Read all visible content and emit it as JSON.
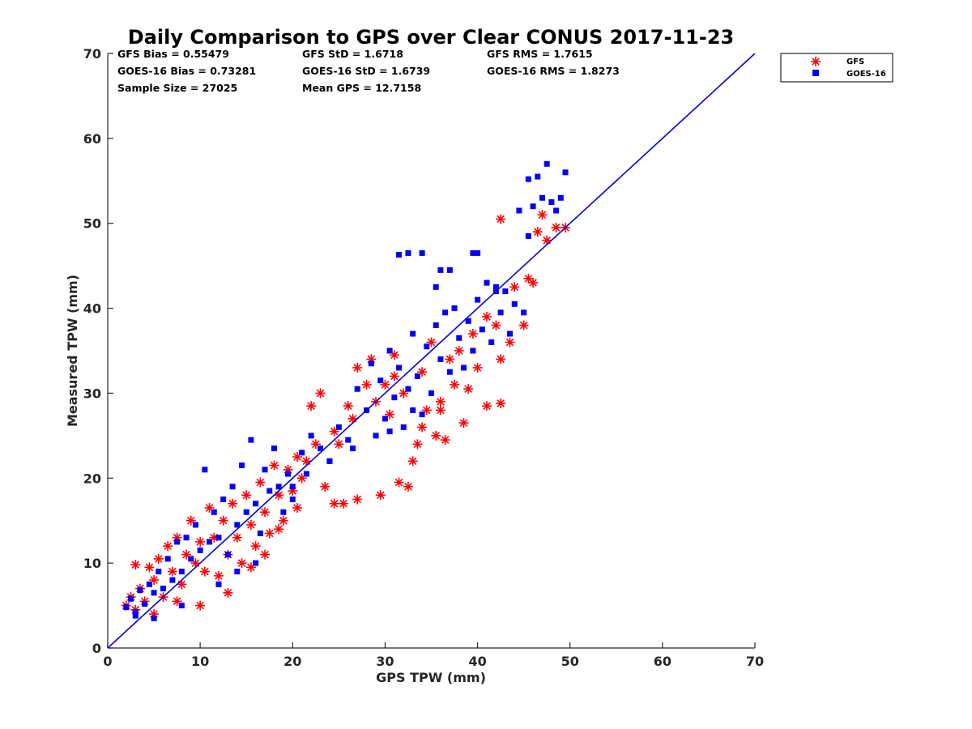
{
  "chart_data": {
    "type": "scatter",
    "title": "Daily Comparison to GPS over Clear CONUS 2017-11-23",
    "xlabel": "GPS TPW (mm)",
    "ylabel": "Measured TPW (mm)",
    "xlim": [
      0,
      70
    ],
    "ylim": [
      0,
      70
    ],
    "xticks": [
      "0",
      "10",
      "20",
      "30",
      "40",
      "50",
      "60",
      "70"
    ],
    "yticks": [
      "0",
      "10",
      "20",
      "30",
      "40",
      "50",
      "60",
      "70"
    ],
    "legend_position": "outside-top-right",
    "reference_line": {
      "name": "1:1 line",
      "color": "#0000dd",
      "x": [
        0,
        70
      ],
      "y": [
        0,
        70
      ]
    },
    "stats": {
      "gfs_bias": "GFS Bias = 0.55479",
      "gfs_std": "GFS StD = 1.6718",
      "gfs_rms": "GFS RMS = 1.7615",
      "goes_bias": "GOES-16 Bias = 0.73281",
      "goes_std": "GOES-16 StD = 1.6739",
      "goes_rms": "GOES-16 RMS = 1.8273",
      "sample_size": "Sample Size = 27025",
      "mean_gps": "Mean GPS = 12.7158"
    },
    "series": [
      {
        "name": "GFS",
        "marker": "asterisk",
        "color": "#ff0000",
        "points": [
          [
            2.0,
            5.0
          ],
          [
            2.5,
            6.0
          ],
          [
            3.0,
            4.5
          ],
          [
            3.5,
            7.0
          ],
          [
            4.0,
            5.5
          ],
          [
            3.0,
            9.8
          ],
          [
            4.5,
            9.5
          ],
          [
            5.0,
            8.0
          ],
          [
            5.5,
            10.5
          ],
          [
            6.0,
            6.0
          ],
          [
            6.5,
            12.0
          ],
          [
            7.0,
            9.0
          ],
          [
            7.5,
            13.0
          ],
          [
            8.0,
            7.5
          ],
          [
            8.5,
            11.0
          ],
          [
            9.0,
            15.0
          ],
          [
            9.5,
            10.0
          ],
          [
            10.0,
            12.5
          ],
          [
            10.5,
            9.0
          ],
          [
            11.0,
            16.5
          ],
          [
            11.5,
            13.0
          ],
          [
            12.0,
            8.5
          ],
          [
            12.5,
            15.0
          ],
          [
            13.0,
            11.0
          ],
          [
            13.5,
            17.0
          ],
          [
            14.0,
            13.0
          ],
          [
            14.5,
            10.0
          ],
          [
            15.0,
            18.0
          ],
          [
            15.5,
            14.5
          ],
          [
            16.0,
            12.0
          ],
          [
            16.5,
            19.5
          ],
          [
            17.0,
            16.0
          ],
          [
            17.5,
            13.5
          ],
          [
            18.0,
            21.5
          ],
          [
            18.5,
            18.0
          ],
          [
            19.0,
            15.0
          ],
          [
            19.5,
            21.0
          ],
          [
            20.0,
            18.5
          ],
          [
            20.5,
            16.5
          ],
          [
            21.0,
            20.0
          ],
          [
            22.0,
            28.5
          ],
          [
            23.0,
            30.0
          ],
          [
            23.5,
            19.0
          ],
          [
            24.5,
            17.0
          ],
          [
            25.5,
            17.0
          ],
          [
            27.0,
            17.5
          ],
          [
            29.5,
            18.0
          ],
          [
            31.5,
            19.5
          ],
          [
            32.5,
            19.0
          ],
          [
            24.5,
            25.5
          ],
          [
            25.0,
            24.0
          ],
          [
            26.5,
            27.0
          ],
          [
            27.0,
            33.0
          ],
          [
            28.5,
            34.0
          ],
          [
            29.0,
            29.0
          ],
          [
            30.0,
            31.0
          ],
          [
            30.5,
            27.5
          ],
          [
            31.0,
            34.5
          ],
          [
            32.0,
            30.0
          ],
          [
            33.0,
            22.0
          ],
          [
            33.5,
            24.0
          ],
          [
            34.0,
            32.5
          ],
          [
            34.5,
            28.0
          ],
          [
            35.0,
            36.0
          ],
          [
            35.5,
            25.0
          ],
          [
            36.0,
            29.0
          ],
          [
            36.5,
            24.5
          ],
          [
            37.0,
            34.0
          ],
          [
            37.5,
            31.0
          ],
          [
            38.0,
            35.0
          ],
          [
            38.5,
            26.5
          ],
          [
            39.0,
            30.5
          ],
          [
            40.0,
            33.0
          ],
          [
            41.0,
            28.5
          ],
          [
            42.0,
            38.0
          ],
          [
            42.5,
            34.0
          ],
          [
            42.5,
            28.8
          ],
          [
            43.5,
            36.0
          ],
          [
            44.0,
            42.5
          ],
          [
            45.0,
            38.0
          ],
          [
            45.5,
            43.5
          ],
          [
            46.0,
            43.0
          ],
          [
            46.5,
            49.0
          ],
          [
            47.0,
            51.0
          ],
          [
            47.5,
            48.0
          ],
          [
            48.5,
            49.5
          ],
          [
            49.5,
            49.5
          ],
          [
            42.5,
            50.5
          ],
          [
            41.0,
            39.0
          ],
          [
            39.5,
            37.0
          ],
          [
            36.0,
            28.0
          ],
          [
            34.0,
            26.0
          ],
          [
            31.0,
            32.0
          ],
          [
            28.0,
            31.0
          ],
          [
            26.0,
            28.5
          ],
          [
            22.5,
            24.0
          ],
          [
            21.5,
            22.0
          ],
          [
            20.5,
            22.5
          ],
          [
            13.0,
            6.5
          ],
          [
            10.0,
            5.0
          ],
          [
            7.5,
            5.5
          ],
          [
            5.0,
            4.0
          ],
          [
            15.5,
            9.5
          ],
          [
            17.0,
            11.0
          ],
          [
            18.5,
            14.0
          ]
        ]
      },
      {
        "name": "GOES-16",
        "marker": "square",
        "color": "#0000ff",
        "points": [
          [
            2.0,
            4.8
          ],
          [
            2.5,
            5.8
          ],
          [
            3.0,
            4.2
          ],
          [
            3.5,
            6.8
          ],
          [
            4.0,
            5.2
          ],
          [
            4.5,
            7.5
          ],
          [
            5.0,
            6.5
          ],
          [
            5.5,
            9.0
          ],
          [
            6.0,
            7.0
          ],
          [
            6.5,
            10.5
          ],
          [
            7.0,
            8.0
          ],
          [
            7.5,
            12.5
          ],
          [
            8.0,
            9.0
          ],
          [
            8.5,
            13.0
          ],
          [
            9.0,
            10.5
          ],
          [
            9.5,
            14.5
          ],
          [
            10.0,
            11.5
          ],
          [
            10.5,
            21.0
          ],
          [
            11.0,
            12.5
          ],
          [
            11.5,
            16.0
          ],
          [
            12.0,
            13.0
          ],
          [
            12.5,
            17.5
          ],
          [
            13.0,
            11.0
          ],
          [
            13.5,
            19.0
          ],
          [
            14.0,
            14.5
          ],
          [
            14.5,
            21.5
          ],
          [
            15.0,
            16.0
          ],
          [
            15.5,
            24.5
          ],
          [
            16.0,
            17.0
          ],
          [
            16.5,
            13.5
          ],
          [
            17.0,
            21.0
          ],
          [
            17.5,
            18.5
          ],
          [
            18.0,
            23.5
          ],
          [
            18.5,
            19.0
          ],
          [
            19.0,
            16.0
          ],
          [
            19.5,
            20.5
          ],
          [
            20.0,
            17.5
          ],
          [
            21.0,
            23.0
          ],
          [
            22.0,
            25.0
          ],
          [
            23.0,
            23.5
          ],
          [
            24.0,
            22.0
          ],
          [
            25.0,
            26.0
          ],
          [
            26.0,
            24.5
          ],
          [
            27.0,
            30.5
          ],
          [
            28.0,
            28.0
          ],
          [
            28.5,
            33.5
          ],
          [
            29.0,
            25.0
          ],
          [
            29.5,
            31.5
          ],
          [
            30.0,
            27.0
          ],
          [
            30.5,
            35.0
          ],
          [
            31.0,
            29.5
          ],
          [
            31.5,
            33.0
          ],
          [
            32.0,
            26.0
          ],
          [
            32.5,
            30.5
          ],
          [
            33.0,
            37.0
          ],
          [
            33.5,
            32.0
          ],
          [
            34.0,
            27.5
          ],
          [
            34.5,
            35.5
          ],
          [
            35.0,
            30.0
          ],
          [
            35.5,
            38.0
          ],
          [
            36.0,
            34.0
          ],
          [
            36.5,
            39.5
          ],
          [
            37.0,
            32.5
          ],
          [
            37.5,
            40.0
          ],
          [
            38.0,
            36.5
          ],
          [
            38.5,
            33.0
          ],
          [
            39.0,
            38.5
          ],
          [
            39.5,
            35.0
          ],
          [
            40.0,
            41.0
          ],
          [
            40.5,
            37.5
          ],
          [
            41.0,
            43.0
          ],
          [
            41.5,
            36.0
          ],
          [
            42.0,
            42.5
          ],
          [
            42.5,
            39.5
          ],
          [
            43.0,
            42.0
          ],
          [
            43.5,
            37.0
          ],
          [
            44.0,
            40.5
          ],
          [
            45.0,
            39.5
          ],
          [
            45.5,
            48.5
          ],
          [
            46.0,
            52.0
          ],
          [
            46.5,
            55.5
          ],
          [
            47.0,
            53.0
          ],
          [
            47.5,
            57.0
          ],
          [
            48.0,
            52.5
          ],
          [
            48.5,
            51.5
          ],
          [
            49.0,
            53.0
          ],
          [
            49.5,
            56.0
          ],
          [
            45.5,
            55.2
          ],
          [
            44.5,
            51.5
          ],
          [
            42.0,
            42.0
          ],
          [
            40.0,
            46.5
          ],
          [
            39.5,
            46.5
          ],
          [
            37.0,
            44.5
          ],
          [
            36.0,
            44.5
          ],
          [
            35.5,
            42.5
          ],
          [
            34.0,
            46.5
          ],
          [
            32.5,
            46.5
          ],
          [
            31.5,
            46.3
          ],
          [
            33.0,
            28.0
          ],
          [
            30.5,
            25.5
          ],
          [
            26.5,
            23.5
          ],
          [
            24.0,
            22.0
          ],
          [
            21.5,
            20.5
          ],
          [
            20.0,
            19.0
          ],
          [
            14.0,
            9.0
          ],
          [
            12.0,
            7.5
          ],
          [
            8.0,
            5.0
          ],
          [
            5.0,
            3.5
          ],
          [
            3.0,
            3.8
          ],
          [
            16.0,
            10.0
          ]
        ]
      }
    ]
  }
}
